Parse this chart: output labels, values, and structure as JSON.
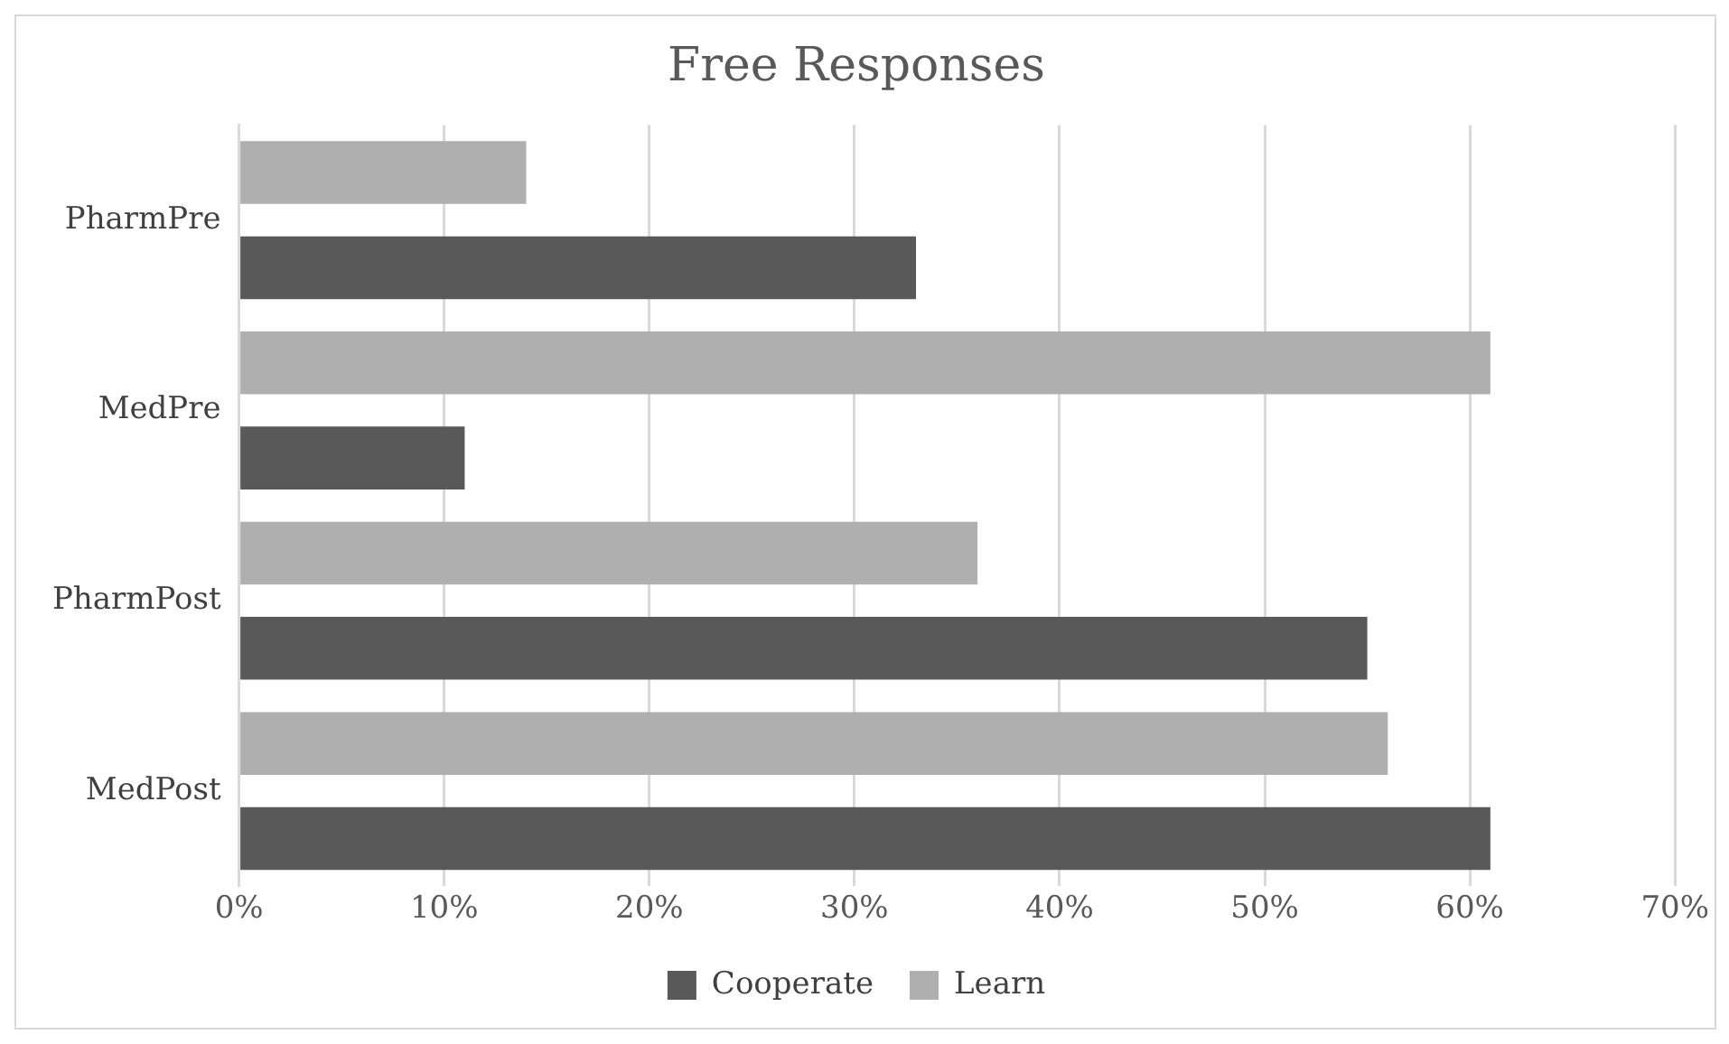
{
  "chart_data": {
    "type": "bar",
    "title": "Free Responses",
    "orientation": "horizontal",
    "categories": [
      "PharmPre",
      "MedPre",
      "PharmPost",
      "MedPost"
    ],
    "series": [
      {
        "name": "Cooperate",
        "color": "#595959",
        "values": [
          33,
          11,
          55,
          61
        ]
      },
      {
        "name": "Learn",
        "color": "#afafaf",
        "values": [
          14,
          61,
          36,
          56
        ]
      }
    ],
    "xlim": [
      0,
      70
    ],
    "xticks": [
      {
        "value": 0,
        "label": "0%"
      },
      {
        "value": 10,
        "label": "10%"
      },
      {
        "value": 20,
        "label": "20%"
      },
      {
        "value": 30,
        "label": "30%"
      },
      {
        "value": 40,
        "label": "40%"
      },
      {
        "value": 50,
        "label": "50%"
      },
      {
        "value": 60,
        "label": "60%"
      },
      {
        "value": 70,
        "label": "70%"
      }
    ],
    "grid": "x",
    "legend": "bottom"
  }
}
